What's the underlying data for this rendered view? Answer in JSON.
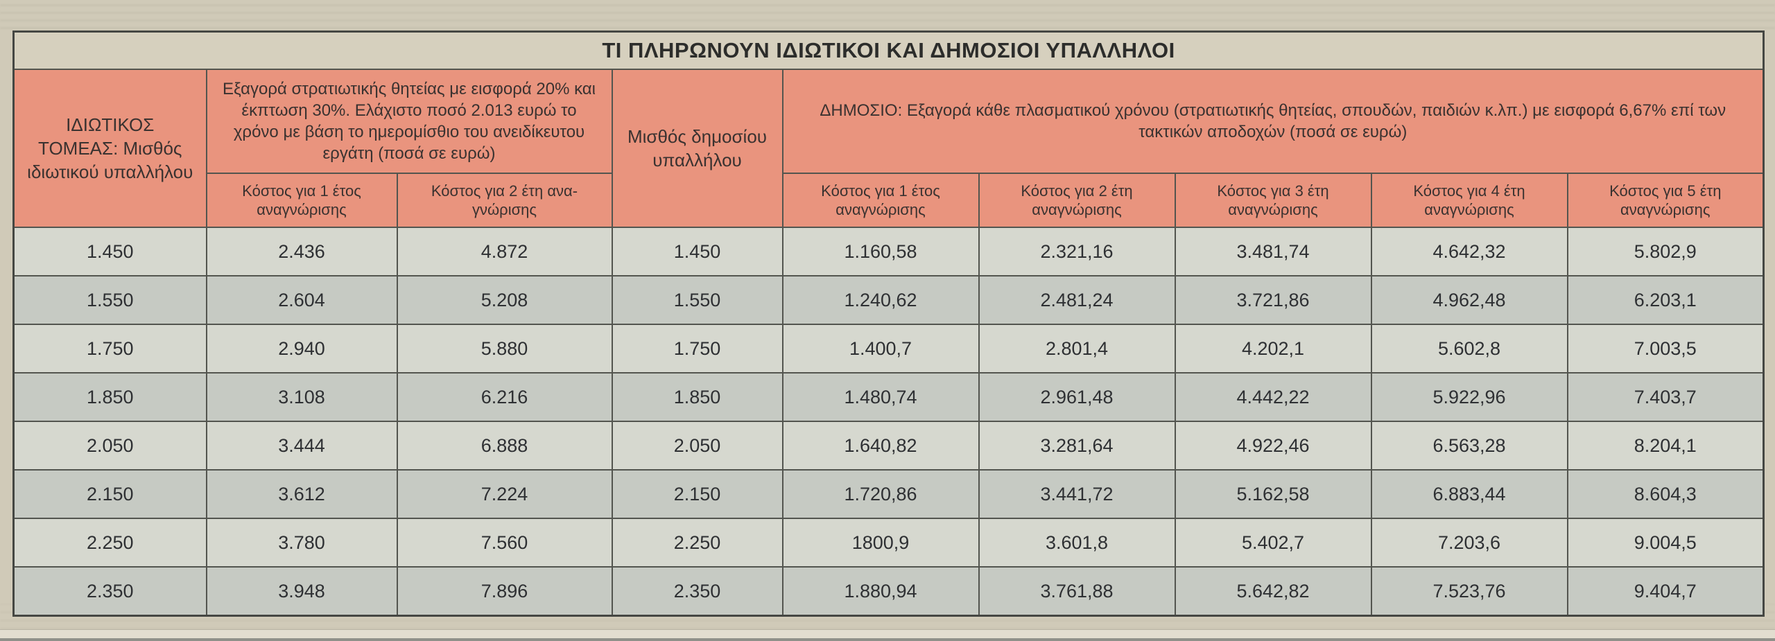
{
  "title": "ΤΙ ΠΛΗΡΩΝΟΥΝ ΙΔΙΩΤΙΚΟΙ ΚΑΙ ΔΗΜΟΣΙΟΙ ΥΠΑΛΛΗΛΟΙ",
  "headers": {
    "private_salary": "ΙΔΙΩΤΙΚΟΣ ΤΟΜΕΑΣ: Μισθός ιδιωτικού υπαλλήλου",
    "private_group": "Εξαγορά στρατιωτικής θητείας με εισφορά 20% και έκπτωση 30%. Ελάχιστο ποσό 2.013 ευρώ το χρόνο με βάση το ημερομίσθιο του ανειδίκευτου εργάτη (ποσά σε ευρώ)",
    "private_cols": [
      "Κόστος για 1 έτος αναγνώρισης",
      "Κόστος για 2 έτη ανα-γνώρισης"
    ],
    "public_salary": "Μισθός δημοσίου υπαλλήλου",
    "public_group": "ΔΗΜΟΣΙΟ: Εξαγορά κάθε πλασματικού χρόνου (στρατιωτικής θητείας, σπουδών, παιδιών κ.λπ.) με εισφορά 6,67% επί των τακτικών αποδοχών (ποσά σε ευρώ)",
    "public_cols": [
      "Κόστος για 1 έτος αναγνώρισης",
      "Κόστος για 2 έτη αναγνώρισης",
      "Κόστος για 3 έτη αναγνώρισης",
      "Κόστος για 4 έτη αναγνώρισης",
      "Κόστος για 5 έτη αναγνώρισης"
    ]
  },
  "rows": [
    [
      "1.450",
      "2.436",
      "4.872",
      "1.450",
      "1.160,58",
      "2.321,16",
      "3.481,74",
      "4.642,32",
      "5.802,9"
    ],
    [
      "1.550",
      "2.604",
      "5.208",
      "1.550",
      "1.240,62",
      "2.481,24",
      "3.721,86",
      "4.962,48",
      "6.203,1"
    ],
    [
      "1.750",
      "2.940",
      "5.880",
      "1.750",
      "1.400,7",
      "2.801,4",
      "4.202,1",
      "5.602,8",
      "7.003,5"
    ],
    [
      "1.850",
      "3.108",
      "6.216",
      "1.850",
      "1.480,74",
      "2.961,48",
      "4.442,22",
      "5.922,96",
      "7.403,7"
    ],
    [
      "2.050",
      "3.444",
      "6.888",
      "2.050",
      "1.640,82",
      "3.281,64",
      "4.922,46",
      "6.563,28",
      "8.204,1"
    ],
    [
      "2.150",
      "3.612",
      "7.224",
      "2.150",
      "1.720,86",
      "3.441,72",
      "5.162,58",
      "6.883,44",
      "8.604,3"
    ],
    [
      "2.250",
      "3.780",
      "7.560",
      "2.250",
      "1800,9",
      "3.601,8",
      "5.402,7",
      "7.203,6",
      "9.004,5"
    ],
    [
      "2.350",
      "3.948",
      "7.896",
      "2.350",
      "1.880,94",
      "3.761,88",
      "5.642,82",
      "7.523,76",
      "9.404,7"
    ]
  ],
  "colors": {
    "paper": "#d0cab8",
    "header_fill": "#e9947e",
    "row_light": "#d6d8cf",
    "row_dark": "#c6cac3",
    "border": "#53554f"
  }
}
